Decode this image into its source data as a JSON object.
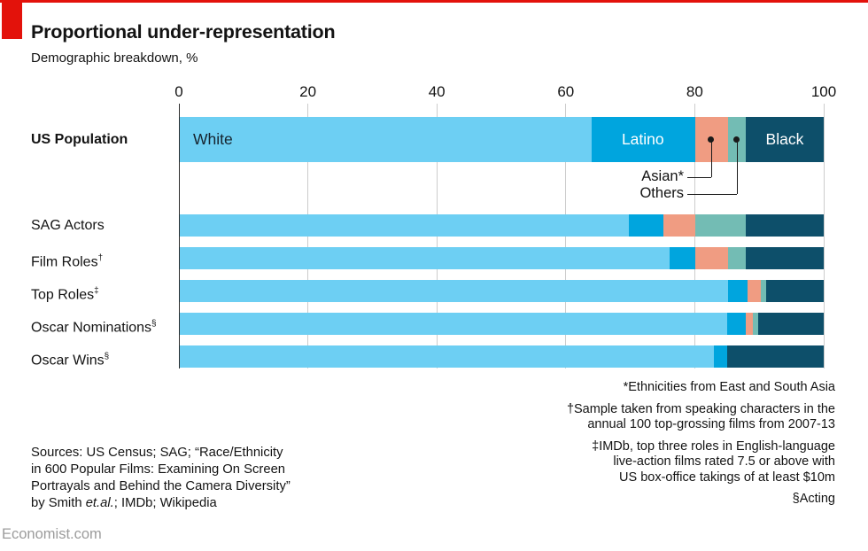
{
  "header": {
    "title": "Proportional under-representation",
    "subtitle": "Demographic breakdown, %"
  },
  "chart_data": {
    "type": "bar",
    "stacked": true,
    "orientation": "horizontal",
    "unit": "%",
    "xlim": [
      0,
      100
    ],
    "xticks": [
      0,
      20,
      40,
      60,
      80,
      100
    ],
    "grid": true,
    "segments": [
      "White",
      "Latino",
      "Asian",
      "Others",
      "Black"
    ],
    "colors": {
      "white": "#6DCFF3",
      "latino": "#00A5DE",
      "asian": "#F09C82",
      "others": "#73BCB4",
      "black": "#0D4F6A",
      "accent_red": "#E3120B",
      "gridline": "#CCCCCC",
      "axis_line": "#2E2E2E"
    },
    "rows": [
      {
        "label": "US Population",
        "suffix": "",
        "bold": true,
        "values": [
          63.9,
          16.1,
          5.1,
          2.8,
          12.1
        ]
      },
      {
        "label": "SAG Actors",
        "suffix": "",
        "bold": false,
        "values": [
          69.8,
          5.3,
          4.9,
          7.9,
          12.1
        ]
      },
      {
        "label": "Film Roles",
        "suffix": "†",
        "bold": false,
        "values": [
          76.0,
          4.1,
          5.1,
          2.7,
          12.1
        ]
      },
      {
        "label": "Top Roles",
        "suffix": "‡",
        "bold": false,
        "values": [
          85.2,
          3.0,
          2.0,
          0.9,
          8.9
        ]
      },
      {
        "label": "Oscar Nominations",
        "suffix": "§",
        "bold": false,
        "values": [
          85.0,
          2.9,
          1.1,
          0.8,
          10.2
        ]
      },
      {
        "label": "Oscar Wins",
        "suffix": "§",
        "bold": false,
        "values": [
          82.9,
          2.1,
          0,
          0,
          15.0
        ]
      }
    ],
    "bar_labels": [
      {
        "text": "White",
        "segment": 0,
        "align": "left",
        "tone": "dark"
      },
      {
        "text": "Latino",
        "segment": 1,
        "align": "center",
        "tone": "light"
      },
      {
        "text": "Black",
        "segment": 4,
        "align": "center",
        "tone": "light"
      }
    ],
    "annotations": [
      {
        "label": "Asian*",
        "segment": 2
      },
      {
        "label": "Others",
        "segment": 3
      }
    ]
  },
  "footnotes": [
    {
      "lines": [
        "*Ethnicities from East and South Asia"
      ]
    },
    {
      "lines": [
        "†Sample taken from speaking characters in the",
        "annual 100 top-grossing films from 2007-13"
      ]
    },
    {
      "lines": [
        "‡IMDb, top three roles in English-language",
        "live-action films rated 7.5 or above with",
        "US box-office takings of at least $10m"
      ]
    },
    {
      "lines": [
        "§Acting"
      ]
    }
  ],
  "sources": {
    "line1": "Sources: US Census; SAG; “Race/Ethnicity",
    "line2": "in 600 Popular Films: Examining On Screen",
    "line3": "Portrayals and Behind the Camera Diversity”",
    "line4_pre": "by Smith ",
    "line4_italic": "et.al.",
    "line4_post": "; IMDb; Wikipedia"
  },
  "footer": {
    "site": "Economist.com"
  }
}
